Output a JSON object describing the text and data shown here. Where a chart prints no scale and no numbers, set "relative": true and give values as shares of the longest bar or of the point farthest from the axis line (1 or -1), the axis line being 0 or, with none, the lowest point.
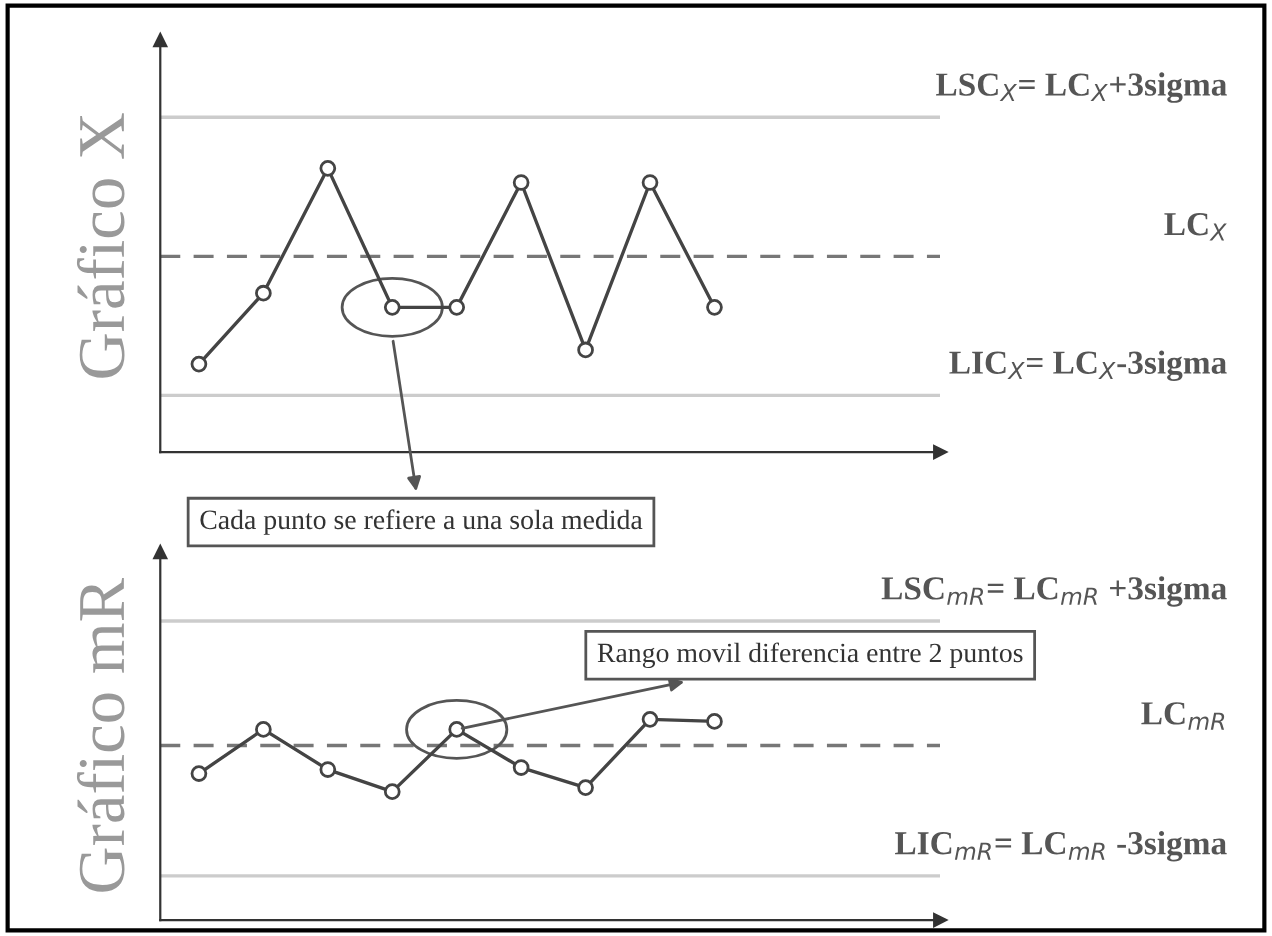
{
  "chart_data": [
    {
      "type": "line",
      "relative": true,
      "ylabel": "Gráfico X",
      "categories": [
        null,
        null,
        null,
        null,
        null,
        null,
        null,
        null,
        null
      ],
      "marker": "circle",
      "line_style": "solid",
      "grid": false,
      "series": [
        {
          "color": "#444444",
          "values": [
            0.31,
            0.56,
            1,
            0.51,
            0.51,
            0.95,
            0.36,
            0.95,
            0.51
          ]
        }
      ],
      "ref_lines": [
        {
          "axis": "y",
          "value": 1.18,
          "label": "LSC$_{X}$= LC$_{X}$+3sigma",
          "color": "#cccccc",
          "line_style": "solid"
        },
        {
          "axis": "y",
          "value": 0.69,
          "label": "LC$_{X}$",
          "color": "#777777",
          "line_style": "dashed"
        },
        {
          "axis": "y",
          "value": 0.2,
          "label": "LIC$_{X}$= LC$_{X}$-3sigma",
          "color": "#cccccc",
          "line_style": "solid"
        }
      ],
      "annotations": [
        "Cada punto se refiere a una sola medida"
      ]
    },
    {
      "type": "line",
      "relative": true,
      "ylabel": "Gráfico mR",
      "categories": [
        null,
        null,
        null,
        null,
        null,
        null,
        null,
        null,
        null
      ],
      "marker": "circle",
      "line_style": "solid",
      "grid": false,
      "series": [
        {
          "color": "#444444",
          "values": [
            0.73,
            0.95,
            0.75,
            0.64,
            0.95,
            0.76,
            0.66,
            1,
            0.99
          ]
        }
      ],
      "ref_lines": [
        {
          "axis": "y",
          "value": 1.49,
          "label": "LSC$_{mR}$= LC$_{mR}$ +3sigma",
          "color": "#cccccc",
          "line_style": "solid"
        },
        {
          "axis": "y",
          "value": 0.87,
          "label": "LC$_{mR}$",
          "color": "#777777",
          "line_style": "dashed"
        },
        {
          "axis": "y",
          "value": 0.22,
          "label": "LIC$_{mR}$= LC$_{mR}$ -3sigma",
          "color": "#cccccc",
          "line_style": "solid"
        }
      ],
      "annotations": [
        "Rango movil diferencia entre 2 puntos"
      ]
    }
  ]
}
